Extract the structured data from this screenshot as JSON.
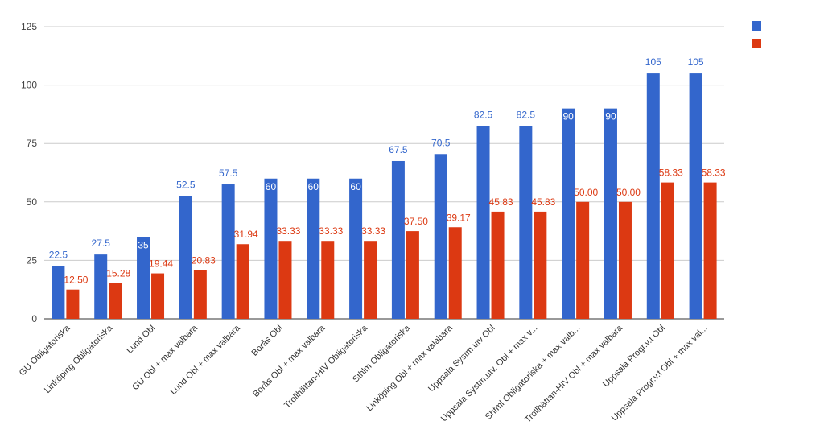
{
  "chart_data": {
    "type": "bar",
    "categories": [
      "GU Obligatoriska",
      "Linköping Obligatoriska",
      "Lund Obl",
      "GU Obl + max valbara",
      "Lund Obl + max valbara",
      "Borås Obl",
      "Borås Obl + max valbara",
      "Trollhättan-HIV Obligatoriska",
      "Sthlm Obligatoriska",
      "Linköping Obl + max valabara",
      "Uppsala Systm.utv Obl",
      "Uppsala Systm.utv. Obl + max v...",
      "Shtml Obligatoriska + max valb...",
      "Trollhättan-HIV Obl + max valbara",
      "Uppsala Progr.v.t Obl",
      "Uppsala Progr.v.t Obl + max val..."
    ],
    "series": [
      {
        "color": "#3366cc",
        "values": [
          22.5,
          27.5,
          35,
          52.5,
          57.5,
          60,
          60,
          60,
          67.5,
          70.5,
          82.5,
          82.5,
          90,
          90,
          105,
          105
        ],
        "labels": [
          "22.5",
          "27.5",
          "35",
          "52.5",
          "57.5",
          "60",
          "60",
          "60",
          "67.5",
          "70.5",
          "82.5",
          "82.5",
          "90",
          "90",
          "105",
          "105"
        ],
        "label_color": "#3366cc"
      },
      {
        "color": "#dc3912",
        "values": [
          12.5,
          15.28,
          19.44,
          20.83,
          31.94,
          33.33,
          33.33,
          33.33,
          37.5,
          39.17,
          45.83,
          45.83,
          50,
          50,
          58.33,
          58.33
        ],
        "labels": [
          "12.50",
          "15.28",
          "19.44",
          "20.83",
          "31.94",
          "33.33",
          "33.33",
          "33.33",
          "37.50",
          "39.17",
          "45.83",
          "45.83",
          "50.00",
          "50.00",
          "58.33",
          "58.33"
        ],
        "label_color": "#dc3912"
      }
    ],
    "ylim": [
      0,
      125
    ],
    "yticks": [
      0,
      25,
      50,
      75,
      100,
      125
    ],
    "ytick_labels": [
      "0",
      "25",
      "50",
      "75",
      "100",
      "125"
    ],
    "grid": true,
    "legend": {
      "position": "top-right",
      "entries": [
        {
          "color": "#3366cc",
          "label": ""
        },
        {
          "color": "#dc3912",
          "label": ""
        }
      ]
    },
    "title": "",
    "xlabel": "",
    "ylabel": ""
  }
}
